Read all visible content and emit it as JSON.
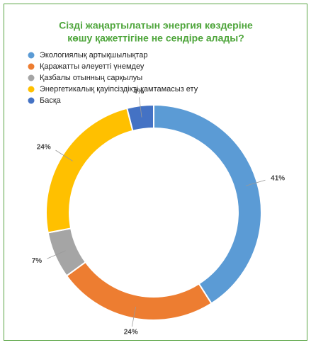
{
  "chart_data": {
    "type": "donut",
    "title": [
      "Сізді жаңартылатын энергия көздеріне",
      "көшу қажеттігіне не сендіре алады?"
    ],
    "categories": [
      "Экологиялық артықшылықтар",
      "Қаражатты әлеуетті үнемдеу",
      "Қазбалы отынның сарқылуы",
      "Энергетикалық қауіпсіздікті қамтамасыз ету",
      "Басқа"
    ],
    "values": [
      41,
      24,
      7,
      24,
      4
    ],
    "value_labels": [
      "41%",
      "24%",
      "7%",
      "24%",
      "4%"
    ],
    "colors": [
      "#5b9bd5",
      "#ed7d31",
      "#a5a5a5",
      "#ffc000",
      "#4472c4"
    ],
    "legend": "top-left"
  }
}
